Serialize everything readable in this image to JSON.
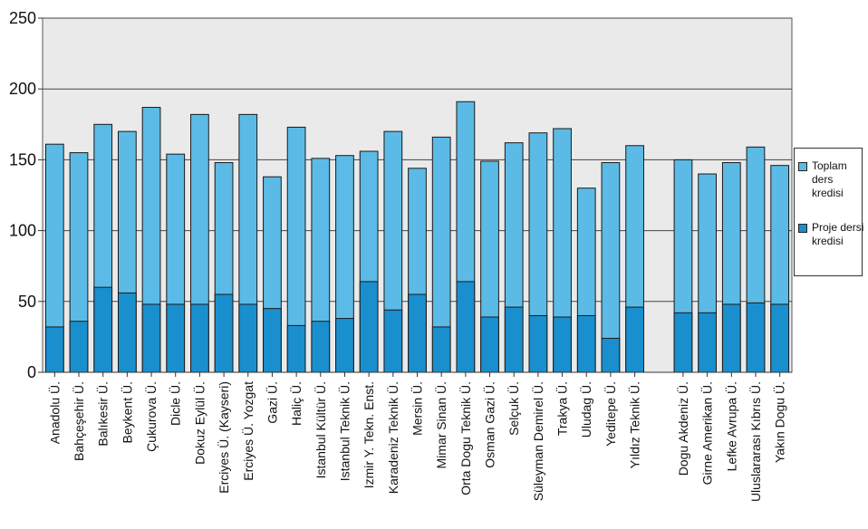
{
  "chart_data": {
    "type": "bar",
    "title": "",
    "xlabel": "",
    "ylabel": "",
    "ylim": [
      0,
      250
    ],
    "yticks": [
      0,
      50,
      100,
      150,
      200,
      250
    ],
    "grid": true,
    "legend_position": "right",
    "categories": [
      "Anadolu Ü.",
      "Bahçeşehir Ü.",
      "Balıkesir Ü.",
      "Beykent Ü.",
      "Çukurova Ü.",
      "Dicle Ü.",
      "Dokuz Eylül Ü.",
      "Erciyes Ü. (Kayseri)",
      "Erciyes Ü. Yozgat",
      "Gazi Ü.",
      "Haliç Ü.",
      "Istanbul Kültür Ü.",
      "Istanbul Teknik Ü.",
      "Izmir Y. Tekn. Enst.",
      "Karadeniz Teknik Ü.",
      "Mersin Ü.",
      "Mimar Sinan Ü.",
      "Orta Dogu Teknik Ü.",
      "Osman Gazi Ü.",
      "Selçuk Ü.",
      "Süleyman Demirel Ü.",
      "Trakya Ü.",
      "Uludag Ü.",
      "Yeditepe Ü.",
      "Yıldız Teknik Ü.",
      "Dogu Akdeniz Ü.",
      "Girne Amerikan Ü.",
      "Lefke Avrupa Ü.",
      "Uluslararası Kıbrıs Ü.",
      "Yakın Dogu Ü."
    ],
    "series": [
      {
        "name": "Toplam ders kredisi",
        "color": "#5bbbe6",
        "values": [
          161,
          155,
          175,
          170,
          187,
          154,
          182,
          148,
          182,
          138,
          173,
          151,
          153,
          156,
          170,
          144,
          166,
          191,
          149,
          162,
          169,
          172,
          130,
          148,
          160,
          150,
          140,
          148,
          159,
          146
        ]
      },
      {
        "name": "Proje dersi kredisi",
        "color": "#1a8fce",
        "values": [
          32,
          36,
          60,
          56,
          48,
          48,
          48,
          55,
          48,
          45,
          33,
          36,
          38,
          64,
          44,
          55,
          32,
          64,
          39,
          46,
          40,
          39,
          40,
          24,
          46,
          42,
          42,
          48,
          49,
          48
        ]
      }
    ],
    "legend": [
      {
        "label": "Toplam ders kredisi",
        "color": "#5bbbe6"
      },
      {
        "label": "Proje dersi kredisi",
        "color": "#1a8fce"
      }
    ],
    "plot_background": "#eaeaea",
    "gap_after_index": 24
  }
}
